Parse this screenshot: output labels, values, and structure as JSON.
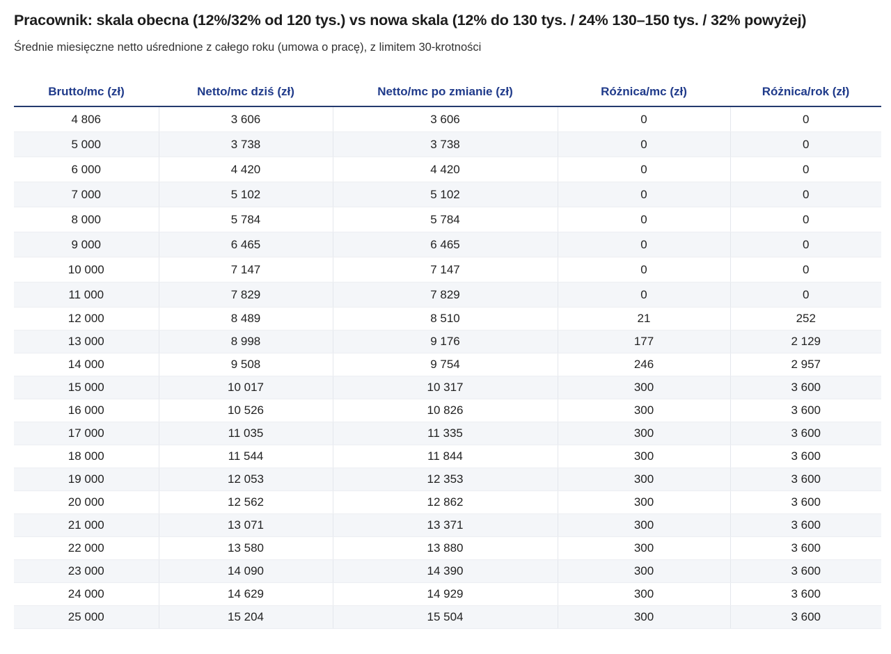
{
  "title": "Pracownik: skala obecna (12%/32% od 120 tys.) vs nowa skala (12% do 130 tys. / 24% 130–150 tys. / 32% powyżej)",
  "subtitle": "Średnie miesięczne netto uśrednione z całego roku (umowa o pracę), z limitem 30-krotności",
  "colors": {
    "header_text": "#1f3a8a",
    "header_rule": "#233a6e",
    "stripe": "#f4f6f9"
  },
  "table": {
    "headers": [
      "Brutto/mc (zł)",
      "Netto/mc dziś (zł)",
      "Netto/mc po zmianie (zł)",
      "Różnica/mc (zł)",
      "Różnica/rok (zł)"
    ],
    "rows": [
      [
        "4 806",
        "3 606",
        "3 606",
        "0",
        "0"
      ],
      [
        "5 000",
        "3 738",
        "3 738",
        "0",
        "0"
      ],
      [
        "6 000",
        "4 420",
        "4 420",
        "0",
        "0"
      ],
      [
        "7 000",
        "5 102",
        "5 102",
        "0",
        "0"
      ],
      [
        "8 000",
        "5 784",
        "5 784",
        "0",
        "0"
      ],
      [
        "9 000",
        "6 465",
        "6 465",
        "0",
        "0"
      ],
      [
        "10 000",
        "7 147",
        "7 147",
        "0",
        "0"
      ],
      [
        "11 000",
        "7 829",
        "7 829",
        "0",
        "0"
      ],
      [
        "12 000",
        "8 489",
        "8 510",
        "21",
        "252"
      ],
      [
        "13 000",
        "8 998",
        "9 176",
        "177",
        "2 129"
      ],
      [
        "14 000",
        "9 508",
        "9 754",
        "246",
        "2 957"
      ],
      [
        "15 000",
        "10 017",
        "10 317",
        "300",
        "3 600"
      ],
      [
        "16 000",
        "10 526",
        "10 826",
        "300",
        "3 600"
      ],
      [
        "17 000",
        "11 035",
        "11 335",
        "300",
        "3 600"
      ],
      [
        "18 000",
        "11 544",
        "11 844",
        "300",
        "3 600"
      ],
      [
        "19 000",
        "12 053",
        "12 353",
        "300",
        "3 600"
      ],
      [
        "20 000",
        "12 562",
        "12 862",
        "300",
        "3 600"
      ],
      [
        "21 000",
        "13 071",
        "13 371",
        "300",
        "3 600"
      ],
      [
        "22 000",
        "13 580",
        "13 880",
        "300",
        "3 600"
      ],
      [
        "23 000",
        "14 090",
        "14 390",
        "300",
        "3 600"
      ],
      [
        "24 000",
        "14 629",
        "14 929",
        "300",
        "3 600"
      ],
      [
        "25 000",
        "15 204",
        "15 504",
        "300",
        "3 600"
      ]
    ]
  }
}
